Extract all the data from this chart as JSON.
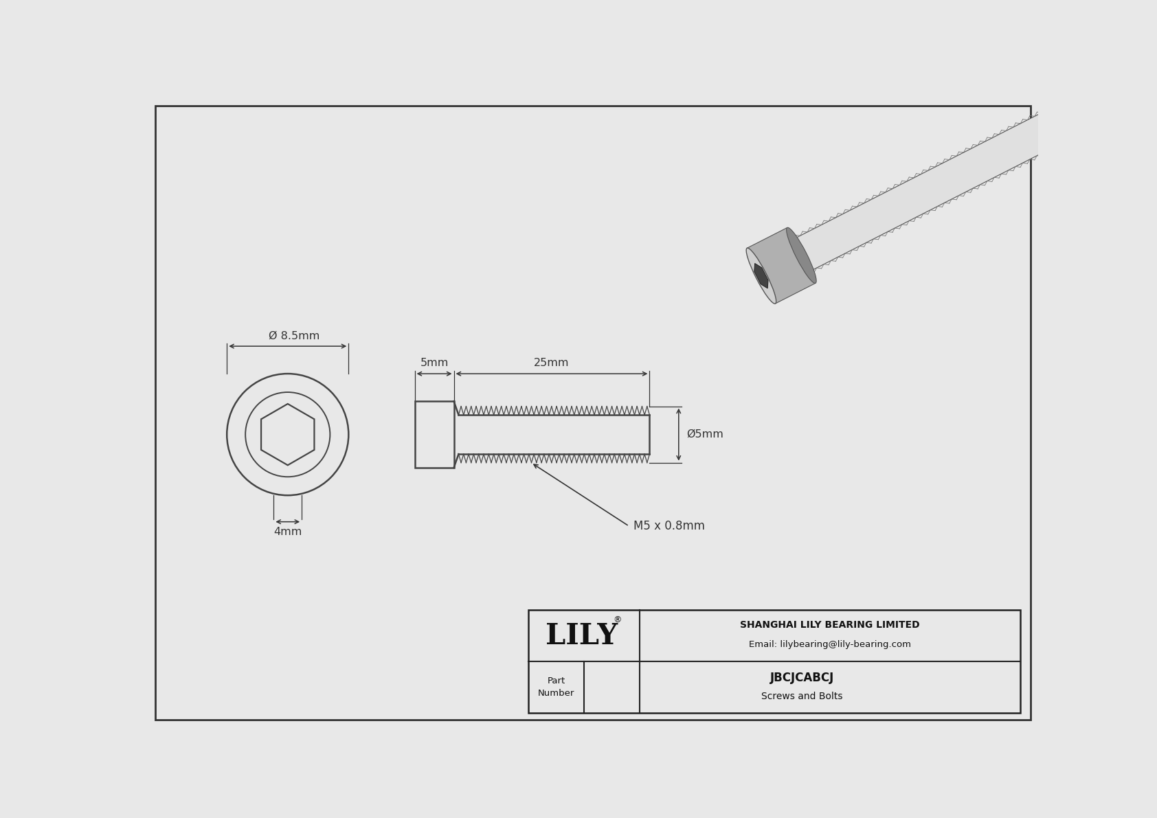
{
  "bg_color": "#e8e8e8",
  "drawing_bg": "#f5f5f5",
  "border_color": "#333333",
  "line_color": "#444444",
  "dim_color": "#333333",
  "title_company": "SHANGHAI LILY BEARING LIMITED",
  "title_email": "Email: lilybearing@lily-bearing.com",
  "part_number": "JBCJCABCJ",
  "part_category": "Screws and Bolts",
  "part_label": "Part\nNumber",
  "lily_logo": "LILY",
  "dim_diameter_head": "Ø 8.5mm",
  "dim_head_length": "5mm",
  "dim_thread_length": "25mm",
  "dim_hex_key": "4mm",
  "dim_thread_dia": "Ø5mm",
  "dim_thread_label": "M5 x 0.8mm",
  "fig_width": 16.84,
  "fig_height": 11.91,
  "dpi": 100
}
